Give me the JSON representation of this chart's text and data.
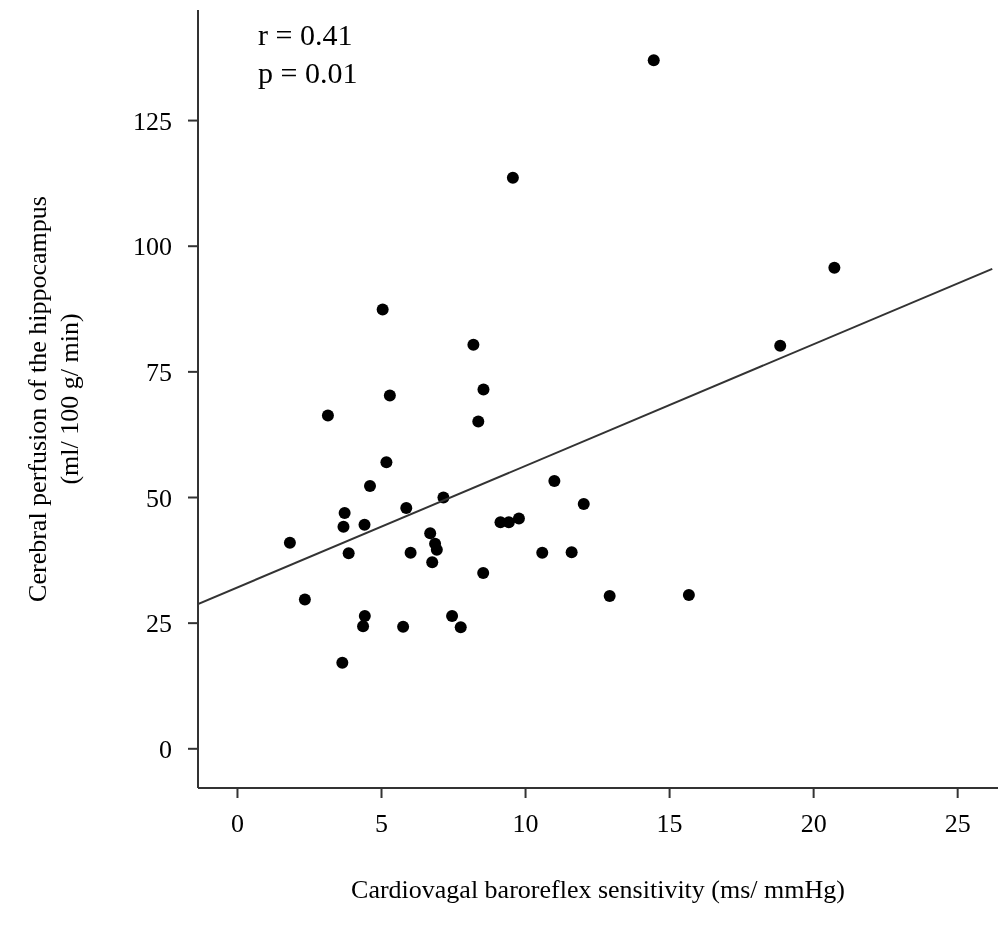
{
  "chart_data": {
    "type": "scatter",
    "xlabel": "Cardiovagal baroreflex sensitivity (ms/ mmHg)",
    "ylabel": "Cerebral perfusion of the hippocampus\n(ml/ 100 g/ min)",
    "annotations": [
      "r = 0.41",
      "p = 0.01"
    ],
    "xlim": [
      -1.37,
      26.4
    ],
    "xticks": [
      0,
      5,
      10,
      15,
      20,
      25
    ],
    "ylim": [
      -7.8,
      147
    ],
    "yticks": [
      0,
      25,
      50,
      75,
      100,
      125
    ],
    "grid": false,
    "legend": false,
    "marker": "circle",
    "series": [
      {
        "color": "#000000",
        "x": [
          9.56,
          5.04,
          8.19,
          8.54,
          5.29,
          3.14,
          8.36,
          5.17,
          4.6,
          7.15,
          11.0,
          12.02,
          5.86,
          3.72,
          3.68,
          4.41,
          9.13,
          9.42,
          9.77,
          6.69,
          6.86,
          6.92,
          6.76,
          1.82,
          3.86,
          6.01,
          10.58,
          11.6,
          8.53,
          2.34,
          12.92,
          14.45,
          20.72,
          18.84,
          15.67,
          4.42,
          4.36,
          5.75,
          7.45,
          7.75,
          3.64
        ],
        "values": [
          113.6,
          87.4,
          80.4,
          71.5,
          70.3,
          66.3,
          65.1,
          57.0,
          52.3,
          50.0,
          53.3,
          48.7,
          47.9,
          46.9,
          44.2,
          44.6,
          45.1,
          45.1,
          45.8,
          42.9,
          40.8,
          39.6,
          37.1,
          41.0,
          38.9,
          39.0,
          39.0,
          39.1,
          35.0,
          29.7,
          30.4,
          137.0,
          95.7,
          80.2,
          30.6,
          26.4,
          24.4,
          24.3,
          26.4,
          24.2,
          17.1
        ]
      },
      {
        "type": "line",
        "color": "#333333",
        "x": [
          -1.37,
          26.2
        ],
        "values": [
          28.8,
          95.5
        ],
        "marker": "none",
        "line_style": "solid"
      }
    ]
  }
}
